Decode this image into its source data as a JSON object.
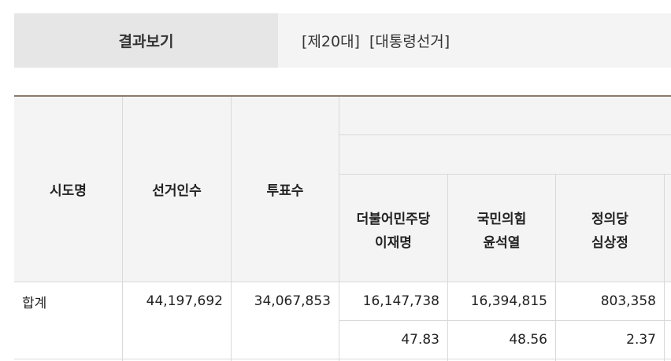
{
  "result_bar": {
    "label": "결과보기",
    "election_no": "[제20대]",
    "election_type": "[대통령선거]"
  },
  "table": {
    "headers": {
      "region": "시도명",
      "electorate": "선거인수",
      "votes": "투표수"
    },
    "candidates": [
      {
        "party": "더불어민주당",
        "name": "이재명"
      },
      {
        "party": "국민의힘",
        "name": "윤석열"
      },
      {
        "party": "정의당",
        "name": "심상정"
      }
    ],
    "rows": [
      {
        "region": "합계",
        "electorate": "44,197,692",
        "votes": "34,067,853",
        "candidate_votes": [
          "16,147,738",
          "16,394,815",
          "803,358"
        ],
        "candidate_rates": [
          "47.83",
          "48.56",
          "2.37"
        ]
      }
    ]
  }
}
